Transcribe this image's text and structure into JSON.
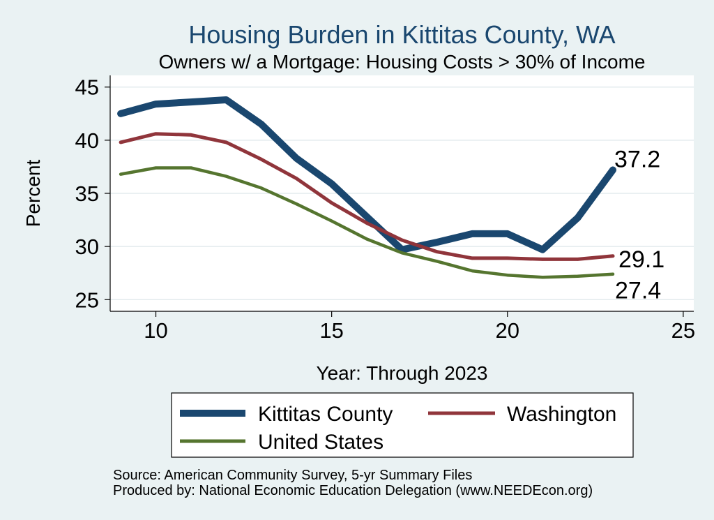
{
  "chart_data": {
    "type": "line",
    "title": "Housing Burden in Kittitas County, WA",
    "subtitle": "Owners w/ a Mortgage: Housing Costs > 30% of Income",
    "xlabel": "Year: Through 2023",
    "ylabel": "Percent",
    "xlim": [
      8.7,
      25.3
    ],
    "ylim": [
      23.9,
      46.1
    ],
    "xticks": [
      10,
      15,
      20,
      25
    ],
    "yticks": [
      25,
      30,
      35,
      40,
      45
    ],
    "grid": true,
    "x": [
      9,
      10,
      11,
      12,
      13,
      14,
      15,
      16,
      17,
      18,
      19,
      20,
      21,
      22,
      23
    ],
    "series": [
      {
        "name": "Kittitas County",
        "color": "#1A476F",
        "values": [
          42.5,
          43.4,
          43.6,
          43.8,
          41.5,
          38.3,
          35.9,
          32.8,
          29.7,
          30.4,
          31.2,
          31.2,
          29.7,
          32.7,
          37.2
        ],
        "end_label": "37.2"
      },
      {
        "name": "Washington",
        "color": "#90353B",
        "values": [
          39.8,
          40.6,
          40.5,
          39.8,
          38.2,
          36.4,
          34.1,
          32.2,
          30.6,
          29.5,
          28.9,
          28.9,
          28.8,
          28.8,
          29.1
        ],
        "end_label": "29.1"
      },
      {
        "name": "United States",
        "color": "#55752F",
        "values": [
          36.8,
          37.4,
          37.4,
          36.6,
          35.5,
          34.0,
          32.4,
          30.7,
          29.4,
          28.6,
          27.7,
          27.3,
          27.1,
          27.2,
          27.4
        ],
        "end_label": "27.4"
      }
    ]
  },
  "notes": {
    "source": "Source: American Community Survey, 5-yr Summary Files",
    "produced_by": "Produced by: National Economic Education Delegation (www.NEEDEcon.org)"
  },
  "colors": {
    "background": "#EAF2F3",
    "plot_background": "#FFFFFF",
    "grid": "#E3EBEE",
    "title": "#1A476F"
  }
}
